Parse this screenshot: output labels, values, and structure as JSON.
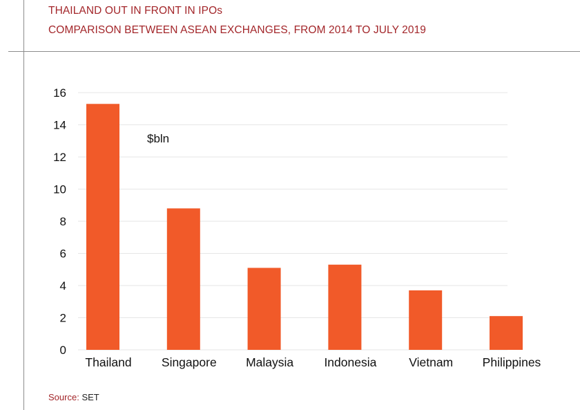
{
  "header": {
    "title": "THAILAND OUT IN FRONT IN IPOs",
    "subtitle": "COMPARISON BETWEEN ASEAN EXCHANGES, FROM 2014 TO JULY 2019"
  },
  "footer": {
    "source_label": "Source:",
    "source_value": "SET"
  },
  "colors": {
    "bar": "#f15a29",
    "header_text": "#a3262a",
    "grid": "#e6e6e6"
  },
  "chart_data": {
    "type": "bar",
    "title": "THAILAND OUT IN FRONT IN IPOs",
    "subtitle": "COMPARISON BETWEEN ASEAN EXCHANGES, FROM 2014 TO JULY 2019",
    "unit_label": "$bln",
    "categories": [
      "Thailand",
      "Singapore",
      "Malaysia",
      "Indonesia",
      "Vietnam",
      "Philippines"
    ],
    "values": [
      15.3,
      8.8,
      5.1,
      5.3,
      3.7,
      2.1
    ],
    "ylim": [
      0,
      16
    ],
    "yticks": [
      0,
      2,
      4,
      6,
      8,
      10,
      12,
      14,
      16
    ],
    "grid": true,
    "legend": "none"
  }
}
